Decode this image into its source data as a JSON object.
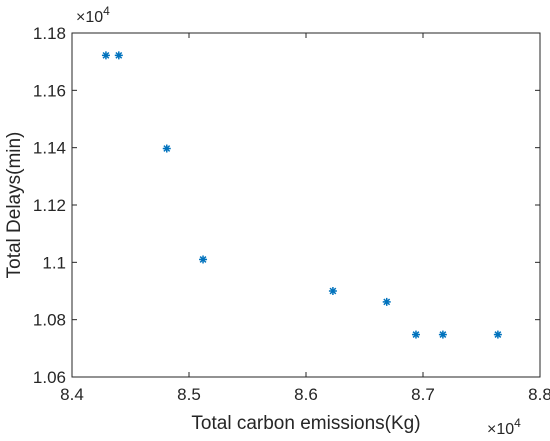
{
  "chart_data": {
    "type": "scatter",
    "title": "",
    "xlabel": "Total carbon emissions(Kg)",
    "ylabel": "Total Delays(min)",
    "x_multiplier_label": "×10",
    "x_multiplier_exp": "4",
    "y_multiplier_label": "×10",
    "y_multiplier_exp": "4",
    "xlim": [
      8.4,
      8.8
    ],
    "ylim": [
      1.06,
      1.18
    ],
    "x_ticks": [
      "8.4",
      "8.5",
      "8.6",
      "8.7",
      "8.8"
    ],
    "y_ticks": [
      "1.06",
      "1.08",
      "1.1",
      "1.12",
      "1.14",
      "1.16",
      "1.18"
    ],
    "grid": false,
    "marker": "asterisk",
    "series": [
      {
        "color": "#0072BD",
        "points": [
          {
            "x": 8.429,
            "y": 1.1722
          },
          {
            "x": 8.44,
            "y": 1.1722
          },
          {
            "x": 8.481,
            "y": 1.1397
          },
          {
            "x": 8.512,
            "y": 1.101
          },
          {
            "x": 8.623,
            "y": 1.09
          },
          {
            "x": 8.669,
            "y": 1.0862
          },
          {
            "x": 8.694,
            "y": 1.0748
          },
          {
            "x": 8.717,
            "y": 1.0748
          },
          {
            "x": 8.764,
            "y": 1.0748
          }
        ]
      }
    ]
  }
}
